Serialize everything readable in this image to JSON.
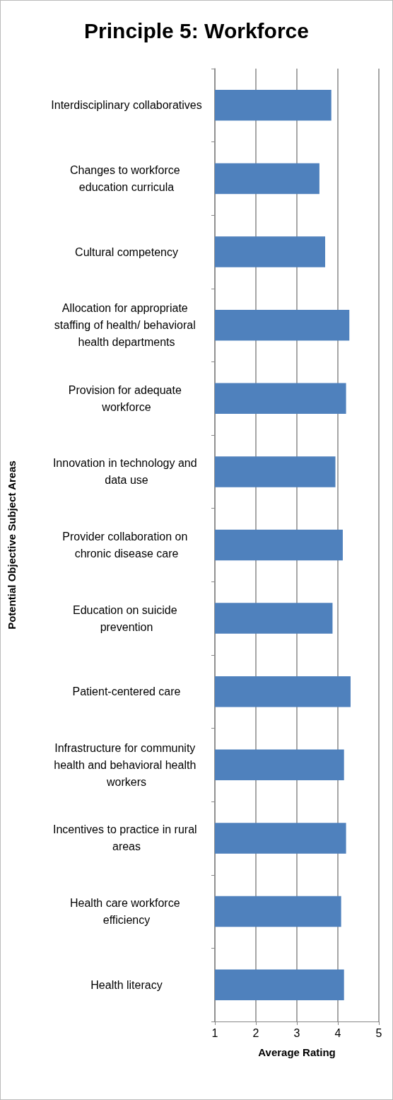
{
  "chart_data": {
    "type": "bar",
    "orientation": "horizontal",
    "title": "Principle 5: Workforce",
    "xlabel": "Average Rating",
    "ylabel": "Potential Objective Subject Areas",
    "categories": [
      "Interdisciplinary collaboratives",
      "Changes to workforce education curricula",
      "Cultural competency",
      "Allocation for appropriate staffing of health/ behavioral health departments",
      "Provision for adequate workforce",
      "Innovation in technology and data use",
      "Provider collaboration on chronic disease care",
      "Education on suicide prevention",
      "Patient-centered care",
      "Infrastructure for community health and behavioral health workers",
      "Incentives to practice in rural areas",
      "Health care workforce efficiency",
      "Health literacy"
    ],
    "values": [
      3.84,
      3.55,
      3.69,
      4.28,
      4.2,
      3.94,
      4.12,
      3.87,
      4.31,
      4.15,
      4.2,
      4.08,
      4.15
    ],
    "color": "#4f81bd",
    "xlim": [
      1,
      5
    ],
    "xticks": [
      1,
      2,
      3,
      4,
      5
    ],
    "grid": "x"
  }
}
